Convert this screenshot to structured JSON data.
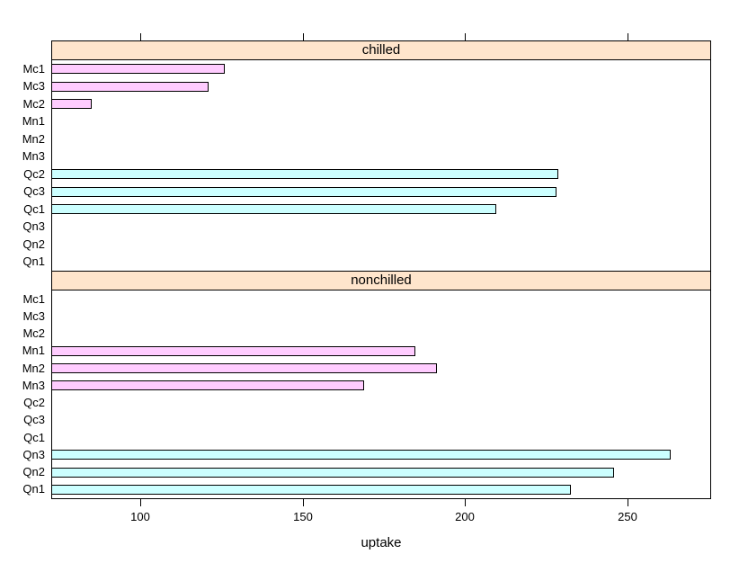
{
  "chart_data": {
    "type": "bar",
    "orientation": "horizontal",
    "xlabel": "uptake",
    "ylabel": "",
    "xlim": [
      72.5,
      275.9
    ],
    "x_ticks": [
      100,
      150,
      200,
      250
    ],
    "grid": false,
    "legend_position": "none",
    "categories_top_to_bottom": [
      "Mc1",
      "Mc3",
      "Mc2",
      "Mn1",
      "Mn2",
      "Mn3",
      "Qc2",
      "Qc3",
      "Qc1",
      "Qn3",
      "Qn2",
      "Qn1"
    ],
    "panels": [
      {
        "strip_label": "chilled",
        "bars": [
          {
            "category": "Mc1",
            "value": 126.0,
            "color": "#FFCCFF"
          },
          {
            "category": "Mc3",
            "value": 121.1,
            "color": "#FFCCFF"
          },
          {
            "category": "Mc2",
            "value": 85.0,
            "color": "#FFCCFF"
          },
          {
            "category": "Mn1",
            "value": null,
            "color": null
          },
          {
            "category": "Mn2",
            "value": null,
            "color": null
          },
          {
            "category": "Mn3",
            "value": null,
            "color": null
          },
          {
            "category": "Qc2",
            "value": 228.9,
            "color": "#CCFFFF"
          },
          {
            "category": "Qc3",
            "value": 228.1,
            "color": "#CCFFFF"
          },
          {
            "category": "Qc1",
            "value": 209.8,
            "color": "#CCFFFF"
          },
          {
            "category": "Qn3",
            "value": null,
            "color": null
          },
          {
            "category": "Qn2",
            "value": null,
            "color": null
          },
          {
            "category": "Qn1",
            "value": null,
            "color": null
          }
        ]
      },
      {
        "strip_label": "nonchilled",
        "bars": [
          {
            "category": "Mc1",
            "value": null,
            "color": null
          },
          {
            "category": "Mc3",
            "value": null,
            "color": null
          },
          {
            "category": "Mc2",
            "value": null,
            "color": null
          },
          {
            "category": "Mn1",
            "value": 184.8,
            "color": "#FFCCFF"
          },
          {
            "category": "Mn2",
            "value": 191.4,
            "color": "#FFCCFF"
          },
          {
            "category": "Mn3",
            "value": 168.8,
            "color": "#FFCCFF"
          },
          {
            "category": "Qc2",
            "value": null,
            "color": null
          },
          {
            "category": "Qc3",
            "value": null,
            "color": null
          },
          {
            "category": "Qc1",
            "value": null,
            "color": null
          },
          {
            "category": "Qn3",
            "value": 263.3,
            "color": "#CCFFFF"
          },
          {
            "category": "Qn2",
            "value": 246.1,
            "color": "#CCFFFF"
          },
          {
            "category": "Qn1",
            "value": 232.6,
            "color": "#CCFFFF"
          }
        ]
      }
    ],
    "colors": {
      "bar_fill_magenta": "#FFCCFF",
      "bar_fill_cyan": "#CCFFFF",
      "bar_border": "#000000",
      "strip_background": "#FFE5CC",
      "panel_border": "#000000",
      "text": "#000000",
      "background": "#FFFFFF"
    }
  }
}
